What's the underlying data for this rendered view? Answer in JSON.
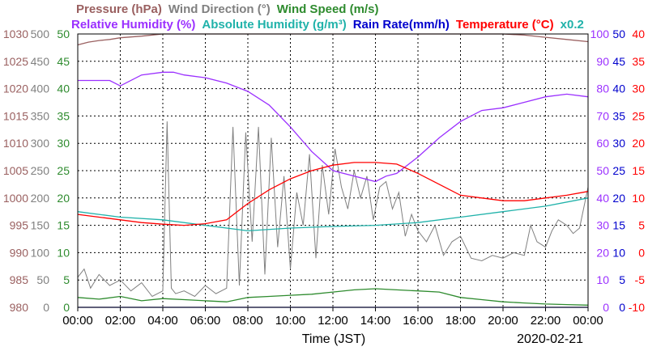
{
  "chart_data": {
    "type": "line",
    "date_label": "2020-02-21",
    "xlabel": "Time (JST)",
    "x_ticks": [
      "00:00",
      "02:00",
      "04:00",
      "06:00",
      "08:00",
      "10:00",
      "12:00",
      "14:00",
      "16:00",
      "18:00",
      "20:00",
      "22:00",
      "00:00"
    ],
    "x_range_hours": [
      0,
      24
    ],
    "grid": true,
    "headers_top": [
      {
        "key": "pressure",
        "label": "Pressure (hPa)",
        "color": "#9a6060"
      },
      {
        "key": "wind_dir",
        "label": "Wind Direction (°)",
        "color": "#808080"
      },
      {
        "key": "wind_speed",
        "label": "Wind Speed (m/s)",
        "color": "#2e8b2e"
      }
    ],
    "headers_bottom": [
      {
        "key": "rh",
        "label": "Relative Humidity (%)",
        "color": "#9b30ff"
      },
      {
        "key": "ah",
        "label": "Absolute Humidity (g/m³)",
        "color": "#20b2aa"
      },
      {
        "key": "rain",
        "label": "Rain Rate(mm/h)",
        "color": "#0000cd"
      },
      {
        "key": "temp",
        "label": "Temperature (°C)",
        "color": "#ff0000"
      },
      {
        "key": "ah_scale",
        "label": "x0.2",
        "color": "#20b2aa"
      }
    ],
    "axes": {
      "pressure": {
        "ticks": [
          "1030",
          "1025",
          "1020",
          "1015",
          "1010",
          "1005",
          "1000",
          "995",
          "990",
          "985",
          "980"
        ],
        "range": [
          980,
          1030
        ]
      },
      "wind_dir": {
        "ticks": [
          "500",
          "450",
          "400",
          "350",
          "300",
          "250",
          "200",
          "150",
          "100",
          "50",
          "0"
        ],
        "range": [
          0,
          500
        ]
      },
      "wind_speed": {
        "ticks": [
          "50",
          "45",
          "40",
          "35",
          "30",
          "25",
          "20",
          "15",
          "10",
          "5",
          "0"
        ],
        "range": [
          0,
          50
        ]
      },
      "rh": {
        "ticks": [
          "100",
          "90",
          "80",
          "70",
          "60",
          "50",
          "40",
          "30",
          "20",
          "10",
          "0"
        ],
        "range": [
          0,
          100
        ]
      },
      "rain": {
        "ticks": [
          "50",
          "45",
          "40",
          "35",
          "30",
          "25",
          "20",
          "15",
          "10",
          "5",
          "0"
        ],
        "range": [
          0,
          50
        ]
      },
      "temp": {
        "ticks": [
          "40",
          "35",
          "30",
          "25",
          "20",
          "15",
          "10",
          "5",
          "0",
          "-5",
          "-10"
        ],
        "range": [
          -10,
          40
        ]
      }
    },
    "series": [
      {
        "key": "pressure",
        "name": "Pressure (hPa)",
        "color": "#9a6060",
        "axis": "pressure",
        "x": [
          0,
          0.5,
          1,
          1.5,
          2,
          3,
          4,
          5,
          6,
          7,
          8,
          9,
          10,
          11,
          12,
          13,
          14,
          15,
          16,
          17,
          18,
          19,
          20,
          21,
          22,
          23,
          24
        ],
        "y": [
          1028.0,
          1028.5,
          1028.8,
          1029.0,
          1029.3,
          1029.6,
          1030.0,
          1030.3,
          1030.5,
          1030.7,
          1030.8,
          1030.9,
          1031.0,
          1031.0,
          1031.0,
          1030.8,
          1030.6,
          1030.4,
          1030.3,
          1030.2,
          1030.3,
          1030.3,
          1030.2,
          1029.8,
          1029.4,
          1029.0,
          1028.6
        ]
      },
      {
        "key": "wind_dir",
        "name": "Wind Direction (°)",
        "color": "#808080",
        "axis": "wind_dir",
        "x": [
          0,
          0.3,
          0.6,
          1,
          1.5,
          2,
          2.5,
          3,
          3.5,
          4,
          4.2,
          4.4,
          4.6,
          5,
          5.5,
          6,
          6.5,
          7,
          7.3,
          7.6,
          7.9,
          8.2,
          8.5,
          8.8,
          9.1,
          9.4,
          9.7,
          10,
          10.3,
          10.6,
          10.9,
          11.2,
          11.5,
          11.8,
          12.1,
          12.4,
          12.7,
          13,
          13.3,
          13.6,
          13.9,
          14.2,
          14.5,
          14.8,
          15.1,
          15.4,
          15.7,
          16,
          16.4,
          16.8,
          17.2,
          17.6,
          18,
          18.5,
          19,
          19.5,
          20,
          20.5,
          21,
          21.3,
          21.6,
          22,
          22.3,
          22.6,
          23,
          23.3,
          23.6,
          24
        ],
        "y": [
          55,
          70,
          35,
          60,
          40,
          50,
          30,
          45,
          20,
          30,
          340,
          35,
          25,
          30,
          20,
          40,
          25,
          35,
          330,
          40,
          320,
          120,
          330,
          60,
          310,
          110,
          240,
          70,
          210,
          150,
          280,
          90,
          260,
          170,
          290,
          220,
          180,
          250,
          200,
          240,
          160,
          220,
          230,
          180,
          210,
          130,
          170,
          140,
          120,
          150,
          95,
          120,
          130,
          90,
          85,
          95,
          90,
          100,
          95,
          150,
          120,
          110,
          140,
          160,
          150,
          135,
          145,
          220
        ]
      },
      {
        "key": "wind_speed",
        "name": "Wind Speed (m/s)",
        "color": "#2e8b2e",
        "axis": "wind_speed",
        "x": [
          0,
          1,
          2,
          3,
          4,
          5,
          6,
          7,
          8,
          9,
          10,
          11,
          12,
          13,
          14,
          15,
          16,
          17,
          18,
          19,
          20,
          21,
          22,
          23,
          24
        ],
        "y": [
          1.8,
          1.5,
          2.0,
          1.2,
          1.6,
          1.4,
          1.2,
          1.0,
          1.8,
          2.0,
          2.2,
          2.4,
          2.8,
          3.2,
          3.4,
          3.2,
          3.0,
          2.8,
          1.8,
          1.4,
          1.0,
          0.8,
          0.6,
          0.5,
          0.4
        ]
      },
      {
        "key": "rh",
        "name": "Relative Humidity (%)",
        "color": "#9b30ff",
        "axis": "rh",
        "x": [
          0,
          1,
          1.5,
          2,
          3,
          4,
          4.5,
          5,
          6,
          7,
          8,
          9,
          10,
          11,
          12,
          13,
          14,
          14.5,
          15,
          16,
          17,
          18,
          19,
          20,
          21,
          22,
          23,
          24
        ],
        "y": [
          83,
          83,
          83,
          81,
          85,
          86,
          86,
          85,
          84,
          82,
          79,
          74,
          66,
          57,
          50,
          48,
          46,
          48,
          49,
          55,
          62,
          68,
          72,
          73,
          75,
          77,
          78,
          77
        ]
      },
      {
        "key": "ah",
        "name": "Absolute Humidity (g/m³)",
        "color": "#20b2aa",
        "axis": "wind_speed",
        "x": [
          0,
          2,
          4,
          6,
          8,
          10,
          12,
          14,
          16,
          18,
          20,
          22,
          24
        ],
        "y": [
          17.5,
          16.5,
          16.0,
          15.0,
          14.0,
          14.5,
          14.8,
          15.0,
          15.5,
          16.5,
          17.5,
          18.5,
          20.0
        ]
      },
      {
        "key": "rain",
        "name": "Rain Rate(mm/h)",
        "color": "#0000cd",
        "axis": "rain",
        "x": [
          0,
          24
        ],
        "y": [
          0,
          0
        ]
      },
      {
        "key": "temp",
        "name": "Temperature (°C)",
        "color": "#ff0000",
        "axis": "temp",
        "x": [
          0,
          1,
          2,
          3,
          4,
          5,
          6,
          7,
          8,
          9,
          10,
          11,
          12,
          13,
          14,
          15,
          16,
          17,
          18,
          19,
          20,
          21,
          22,
          23,
          24
        ],
        "y": [
          7.0,
          6.5,
          6.0,
          5.5,
          5.2,
          5.0,
          5.3,
          6.0,
          9.0,
          11.5,
          13.5,
          15.0,
          16.0,
          16.5,
          16.5,
          16.2,
          14.5,
          12.5,
          10.5,
          10.0,
          9.5,
          9.5,
          10.0,
          10.5,
          11.2
        ]
      }
    ]
  }
}
